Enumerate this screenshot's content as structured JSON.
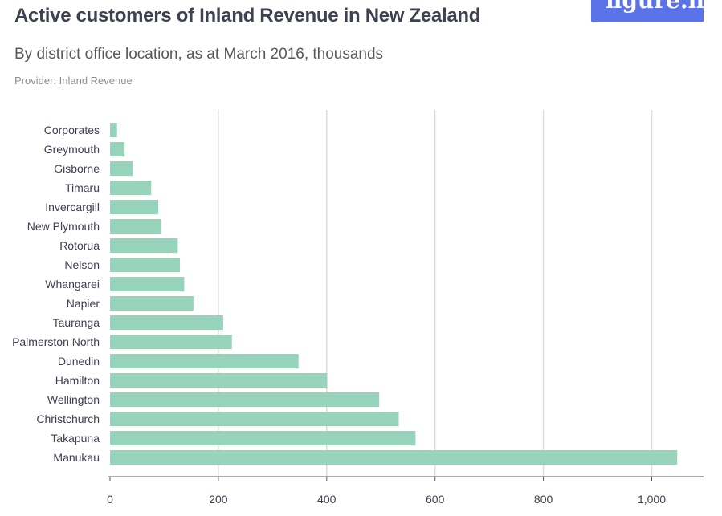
{
  "header": {
    "title": "Active customers of Inland Revenue in New Zealand",
    "subtitle": "By district office location, as at March 2016, thousands",
    "provider": "Provider: Inland Revenue",
    "logo": "figure.nz"
  },
  "colors": {
    "bar": "#97d4bb",
    "grid": "#dddddd",
    "axis": "#555555"
  },
  "chart_data": {
    "type": "bar",
    "orientation": "horizontal",
    "categories": [
      "Corporates",
      "Greymouth",
      "Gisborne",
      "Timaru",
      "Invercargill",
      "New Plymouth",
      "Rotorua",
      "Nelson",
      "Whangarei",
      "Napier",
      "Tauranga",
      "Palmerston North",
      "Dunedin",
      "Hamilton",
      "Wellington",
      "Christchurch",
      "Takapuna",
      "Manukau"
    ],
    "values": [
      13,
      27,
      42,
      76,
      89,
      94,
      125,
      129,
      137,
      154,
      209,
      225,
      348,
      401,
      497,
      533,
      564,
      1047
    ],
    "xlim": [
      0,
      1100
    ],
    "xticks": [
      0,
      200,
      400,
      600,
      800,
      1000
    ],
    "xtick_labels": [
      "0",
      "200",
      "400",
      "600",
      "800",
      "1,000"
    ],
    "grid": true,
    "title": "Active customers of Inland Revenue in New Zealand",
    "xlabel": "",
    "ylabel": ""
  }
}
